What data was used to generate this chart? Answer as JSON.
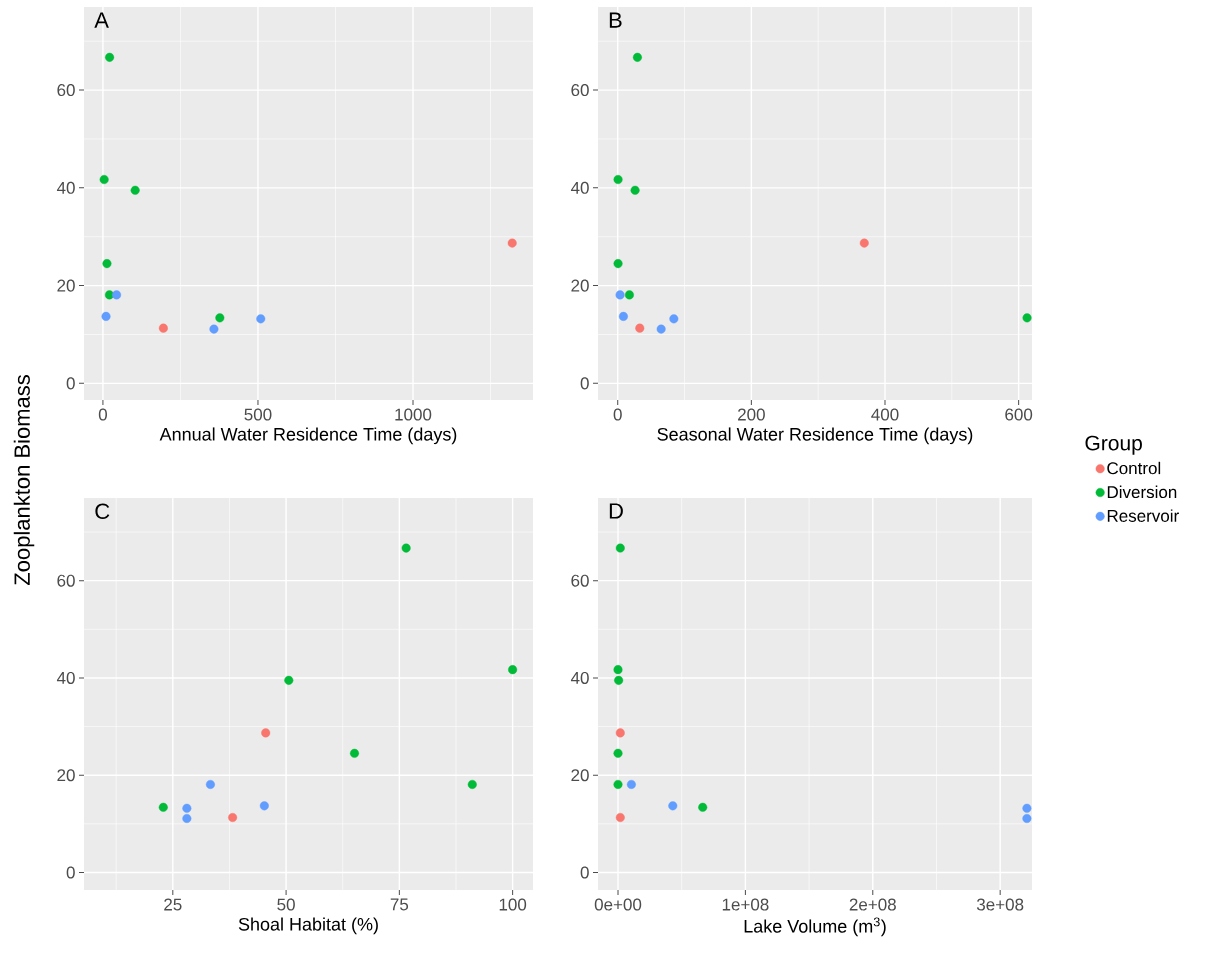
{
  "chart_data": [
    {
      "type": "scatter",
      "title": "A",
      "xlabel": "Annual Water Residence Time (days)",
      "ylabel": "Zooplankton Biomass",
      "xlim": [
        -61,
        1387
      ],
      "ylim": [
        -3.4,
        77
      ],
      "xticks": [
        0,
        500,
        1000
      ],
      "yticks": [
        0,
        20,
        40,
        60
      ],
      "grid": true,
      "series": [
        {
          "color": "#f8766d",
          "x": [
            195,
            1320
          ],
          "values": [
            11.3,
            28.7
          ]
        },
        {
          "color": "#00ba38",
          "x": [
            21.5,
            4,
            104,
            13,
            21,
            377
          ],
          "values": [
            66.7,
            41.7,
            39.5,
            24.5,
            18.1,
            13.4
          ]
        },
        {
          "color": "#619cff",
          "x": [
            44,
            10,
            358,
            509
          ],
          "values": [
            18.1,
            13.7,
            11.1,
            13.2
          ]
        }
      ]
    },
    {
      "type": "scatter",
      "title": "B",
      "xlabel": "Seasonal Water Residence Time (days)",
      "xlim": [
        -29.5,
        620
      ],
      "ylim": [
        -3.4,
        77
      ],
      "xticks": [
        0,
        200,
        400,
        600
      ],
      "yticks": [
        0,
        20,
        40,
        60
      ],
      "grid": true,
      "legend": "right",
      "legend_title": "Group",
      "series": [
        {
          "name": "Control",
          "color": "#f8766d",
          "x": [
            33,
            369
          ],
          "values": [
            11.3,
            28.7
          ]
        },
        {
          "name": "Diversion",
          "color": "#00ba38",
          "x": [
            29.5,
            0.5,
            26,
            0.5,
            17.5,
            612.6
          ],
          "values": [
            66.7,
            41.7,
            39.5,
            24.5,
            18.1,
            13.4
          ]
        },
        {
          "name": "Reservoir",
          "color": "#619cff",
          "x": [
            3.5,
            8.5,
            65,
            84
          ],
          "values": [
            18.1,
            13.7,
            11.1,
            13.2
          ]
        }
      ]
    },
    {
      "type": "scatter",
      "title": "C",
      "xlabel": "Shoal Habitat (%)",
      "xlim": [
        5.4,
        104.5
      ],
      "ylim": [
        -3.6,
        77
      ],
      "xticks": [
        25,
        50,
        75,
        100
      ],
      "yticks": [
        0,
        20,
        40,
        60
      ],
      "grid": true,
      "series": [
        {
          "color": "#f8766d",
          "x": [
            38.2,
            45.5
          ],
          "values": [
            11.3,
            28.7
          ]
        },
        {
          "color": "#00ba38",
          "x": [
            76.5,
            100,
            50.6,
            65.1,
            91.1,
            22.9
          ],
          "values": [
            66.7,
            41.7,
            39.5,
            24.5,
            18.1,
            13.4
          ]
        },
        {
          "color": "#619cff",
          "x": [
            33.3,
            45.2,
            28.1,
            28.1
          ],
          "values": [
            18.1,
            13.7,
            11.1,
            13.2
          ]
        }
      ]
    },
    {
      "type": "scatter",
      "title": "D",
      "xlabel": "Lake Volume (m$^{3}$)",
      "xlim": [
        -15700000,
        325000000
      ],
      "ylim": [
        -3.6,
        77
      ],
      "xticks": [
        {
          "value": 0,
          "label": "0e+00"
        },
        {
          "value": 100000000,
          "label": "1e+08"
        },
        {
          "value": 200000000,
          "label": "2e+08"
        },
        {
          "value": 300000000,
          "label": "3e+08"
        }
      ],
      "yticks": [
        0,
        20,
        40,
        60
      ],
      "grid": true,
      "series": [
        {
          "color": "#f8766d",
          "x": [
            1800000,
            1800000
          ],
          "values": [
            11.3,
            28.7
          ]
        },
        {
          "color": "#00ba38",
          "x": [
            1800000,
            0,
            500000,
            0,
            0,
            66500000
          ],
          "values": [
            66.7,
            41.7,
            39.5,
            24.5,
            18.1,
            13.4
          ]
        },
        {
          "color": "#619cff",
          "x": [
            10500000,
            43000000,
            321000000,
            321000000
          ],
          "values": [
            18.1,
            13.7,
            11.1,
            13.2
          ]
        }
      ]
    }
  ]
}
